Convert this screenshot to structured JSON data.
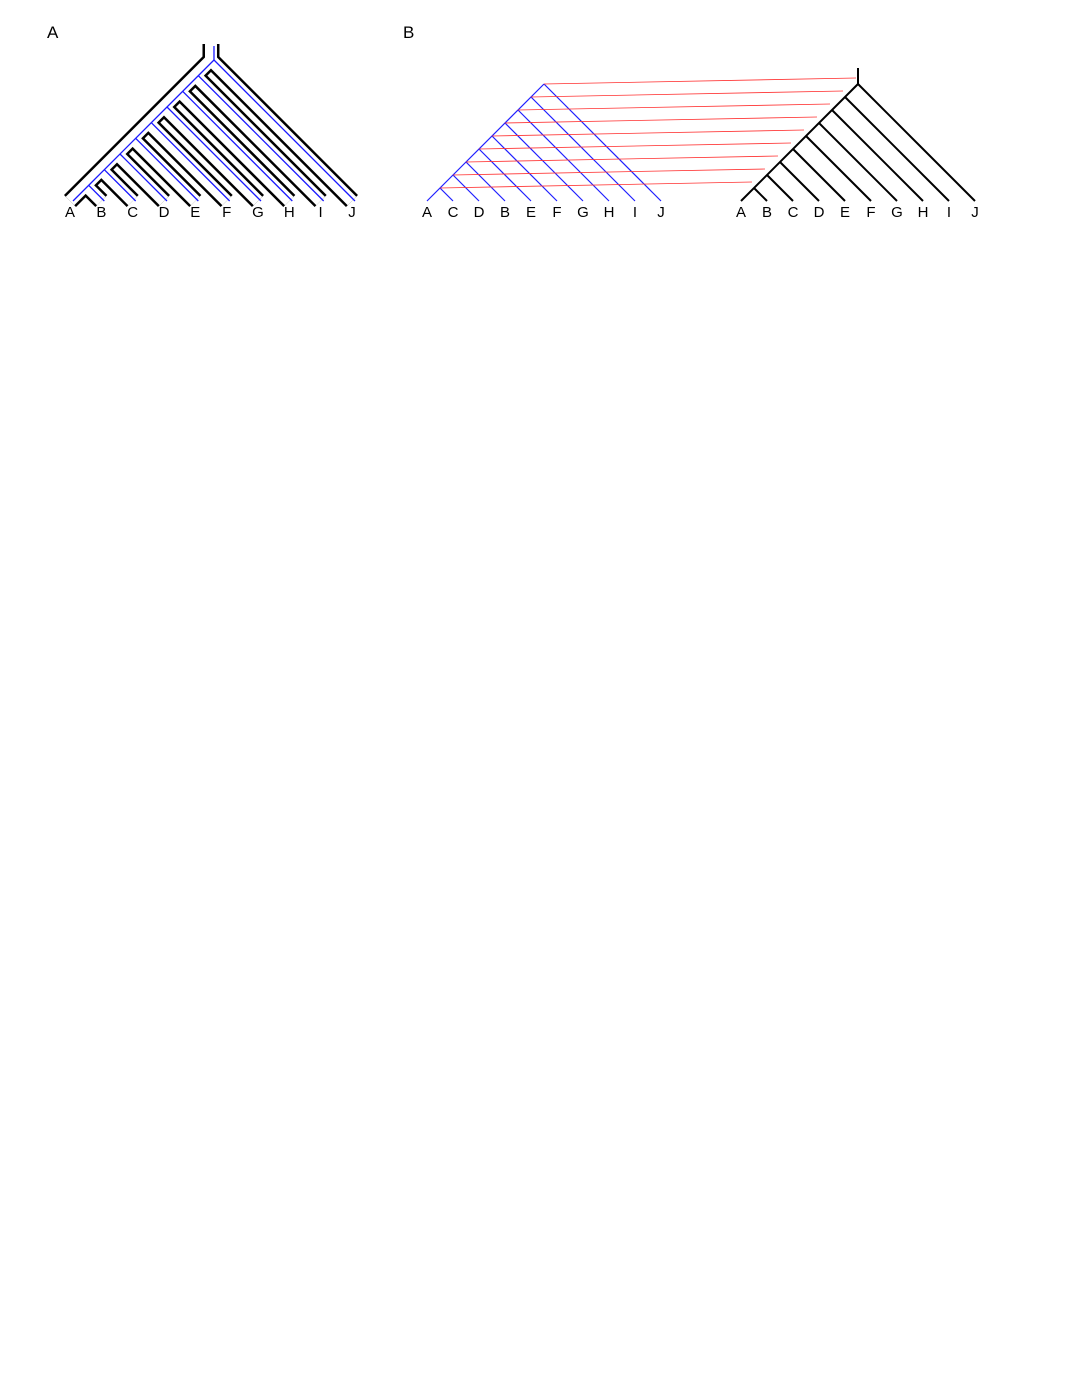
{
  "panels": [
    {
      "label": "A",
      "leaves": [
        "A",
        "B",
        "C",
        "D",
        "E",
        "F",
        "G",
        "H",
        "I",
        "J"
      ]
    },
    {
      "label": "B",
      "left_leaves": [
        "A",
        "C",
        "D",
        "B",
        "E",
        "F",
        "G",
        "H",
        "I",
        "J"
      ],
      "right_leaves": [
        "A",
        "B",
        "C",
        "D",
        "E",
        "F",
        "G",
        "H",
        "I",
        "J"
      ]
    }
  ]
}
